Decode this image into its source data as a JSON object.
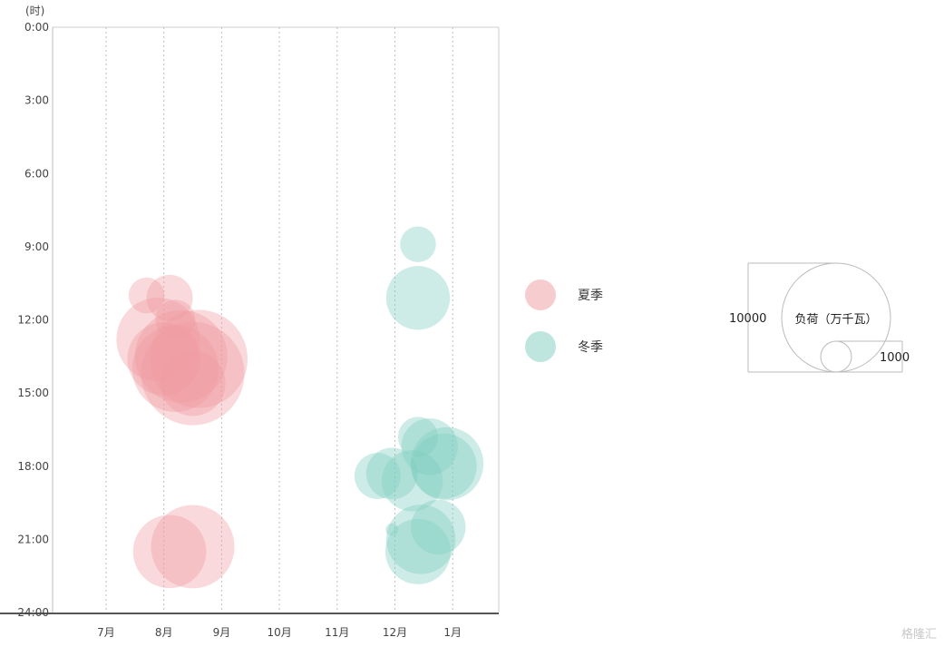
{
  "chart_data": {
    "type": "scatter",
    "y_unit_label": "(时)",
    "y_ticks": [
      "0:00",
      "3:00",
      "6:00",
      "9:00",
      "12:00",
      "15:00",
      "18:00",
      "21:00",
      "24:00"
    ],
    "x_ticks": [
      "7月",
      "8月",
      "9月",
      "10月",
      "11月",
      "12月",
      "1月"
    ],
    "ylim": [
      0,
      24
    ],
    "grid": "vertical-dotted",
    "legend_placement": "right",
    "series": [
      {
        "name": "夏季",
        "color": "#ef9aa0",
        "points": [
          {
            "month": 7.7,
            "hour": 11.0,
            "load": 1200
          },
          {
            "month": 8.1,
            "hour": 11.1,
            "load": 2000
          },
          {
            "month": 8.2,
            "hour": 12.0,
            "load": 1500
          },
          {
            "month": 7.9,
            "hour": 12.8,
            "load": 6500
          },
          {
            "month": 8.5,
            "hour": 14.2,
            "load": 10000
          },
          {
            "month": 8.3,
            "hour": 13.5,
            "load": 8000
          },
          {
            "month": 8.0,
            "hour": 13.6,
            "load": 5000
          },
          {
            "month": 8.6,
            "hour": 13.6,
            "load": 9000
          },
          {
            "month": 8.2,
            "hour": 14.0,
            "load": 7000
          },
          {
            "month": 8.5,
            "hour": 14.6,
            "load": 4000
          },
          {
            "month": 8.1,
            "hour": 21.5,
            "load": 5000
          },
          {
            "month": 8.5,
            "hour": 21.3,
            "load": 6500
          }
        ]
      },
      {
        "name": "冬季",
        "color": "#7ecdc0",
        "points": [
          {
            "month": 12.4,
            "hour": 8.9,
            "load": 1200
          },
          {
            "month": 12.4,
            "hour": 11.1,
            "load": 3800
          },
          {
            "month": 12.4,
            "hour": 16.8,
            "load": 1500
          },
          {
            "month": 12.6,
            "hour": 17.2,
            "load": 3000
          },
          {
            "month": 12.9,
            "hour": 17.9,
            "load": 5000
          },
          {
            "month": 12.85,
            "hour": 18.0,
            "load": 4000
          },
          {
            "month": 11.7,
            "hour": 18.4,
            "load": 2000
          },
          {
            "month": 11.95,
            "hour": 18.3,
            "load": 2500
          },
          {
            "month": 12.3,
            "hour": 18.6,
            "load": 3500
          },
          {
            "month": 11.95,
            "hour": 20.6,
            "load": 150
          },
          {
            "month": 12.75,
            "hour": 20.5,
            "load": 2800
          },
          {
            "month": 12.45,
            "hour": 21.0,
            "load": 4500
          },
          {
            "month": 12.4,
            "hour": 21.5,
            "load": 4000
          }
        ]
      }
    ],
    "size_legend": {
      "title": "负荷（万千瓦）",
      "large_value": "10000",
      "small_value": "1000"
    }
  },
  "watermark": "格隆汇"
}
